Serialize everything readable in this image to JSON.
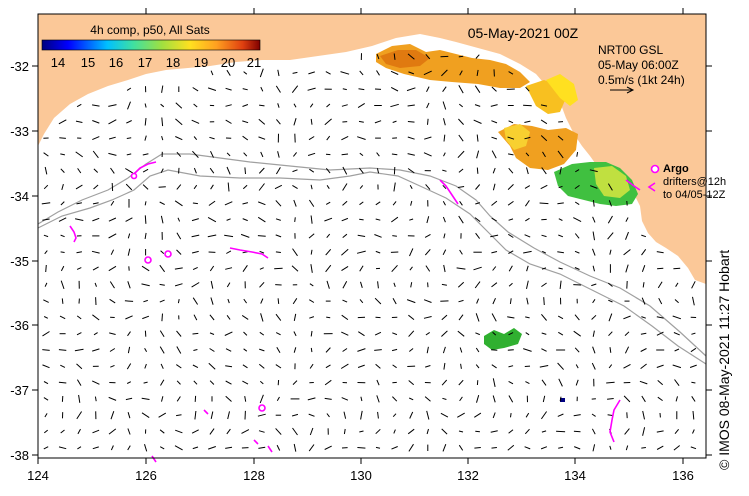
{
  "title": "05-May-2021 00Z",
  "colorbar": {
    "label": "4h comp, p50, All Sats",
    "ticks": [
      "14",
      "15",
      "16",
      "17",
      "18",
      "19",
      "20",
      "21"
    ],
    "colors": [
      "#00007f",
      "#0000ff",
      "#007fff",
      "#00ffff",
      "#7fff7f",
      "#ffff00",
      "#ff7f00",
      "#ff0000",
      "#7f0000"
    ]
  },
  "current_legend": {
    "line1": "NRT00 GSL",
    "line2": "05-May 06:00Z",
    "line3": "0.5m/s (1kt 24h)"
  },
  "argo_legend": {
    "title": "Argo",
    "line1": "drifters@12h",
    "line2": "to 04/05-12Z"
  },
  "side_label": "© IMOS 08-May-2021 11:27 Hobart",
  "axes": {
    "lat_labels": [
      "-32",
      "-33",
      "-34",
      "-35",
      "-36",
      "-37",
      "-38"
    ],
    "lon_labels": [
      "124",
      "126",
      "128",
      "130",
      "132",
      "134",
      "136"
    ]
  },
  "colors": {
    "land": "#fbc898",
    "ocean": "#ffffff",
    "argo": "#ff00ff",
    "isobath": "#a0a0a0"
  }
}
